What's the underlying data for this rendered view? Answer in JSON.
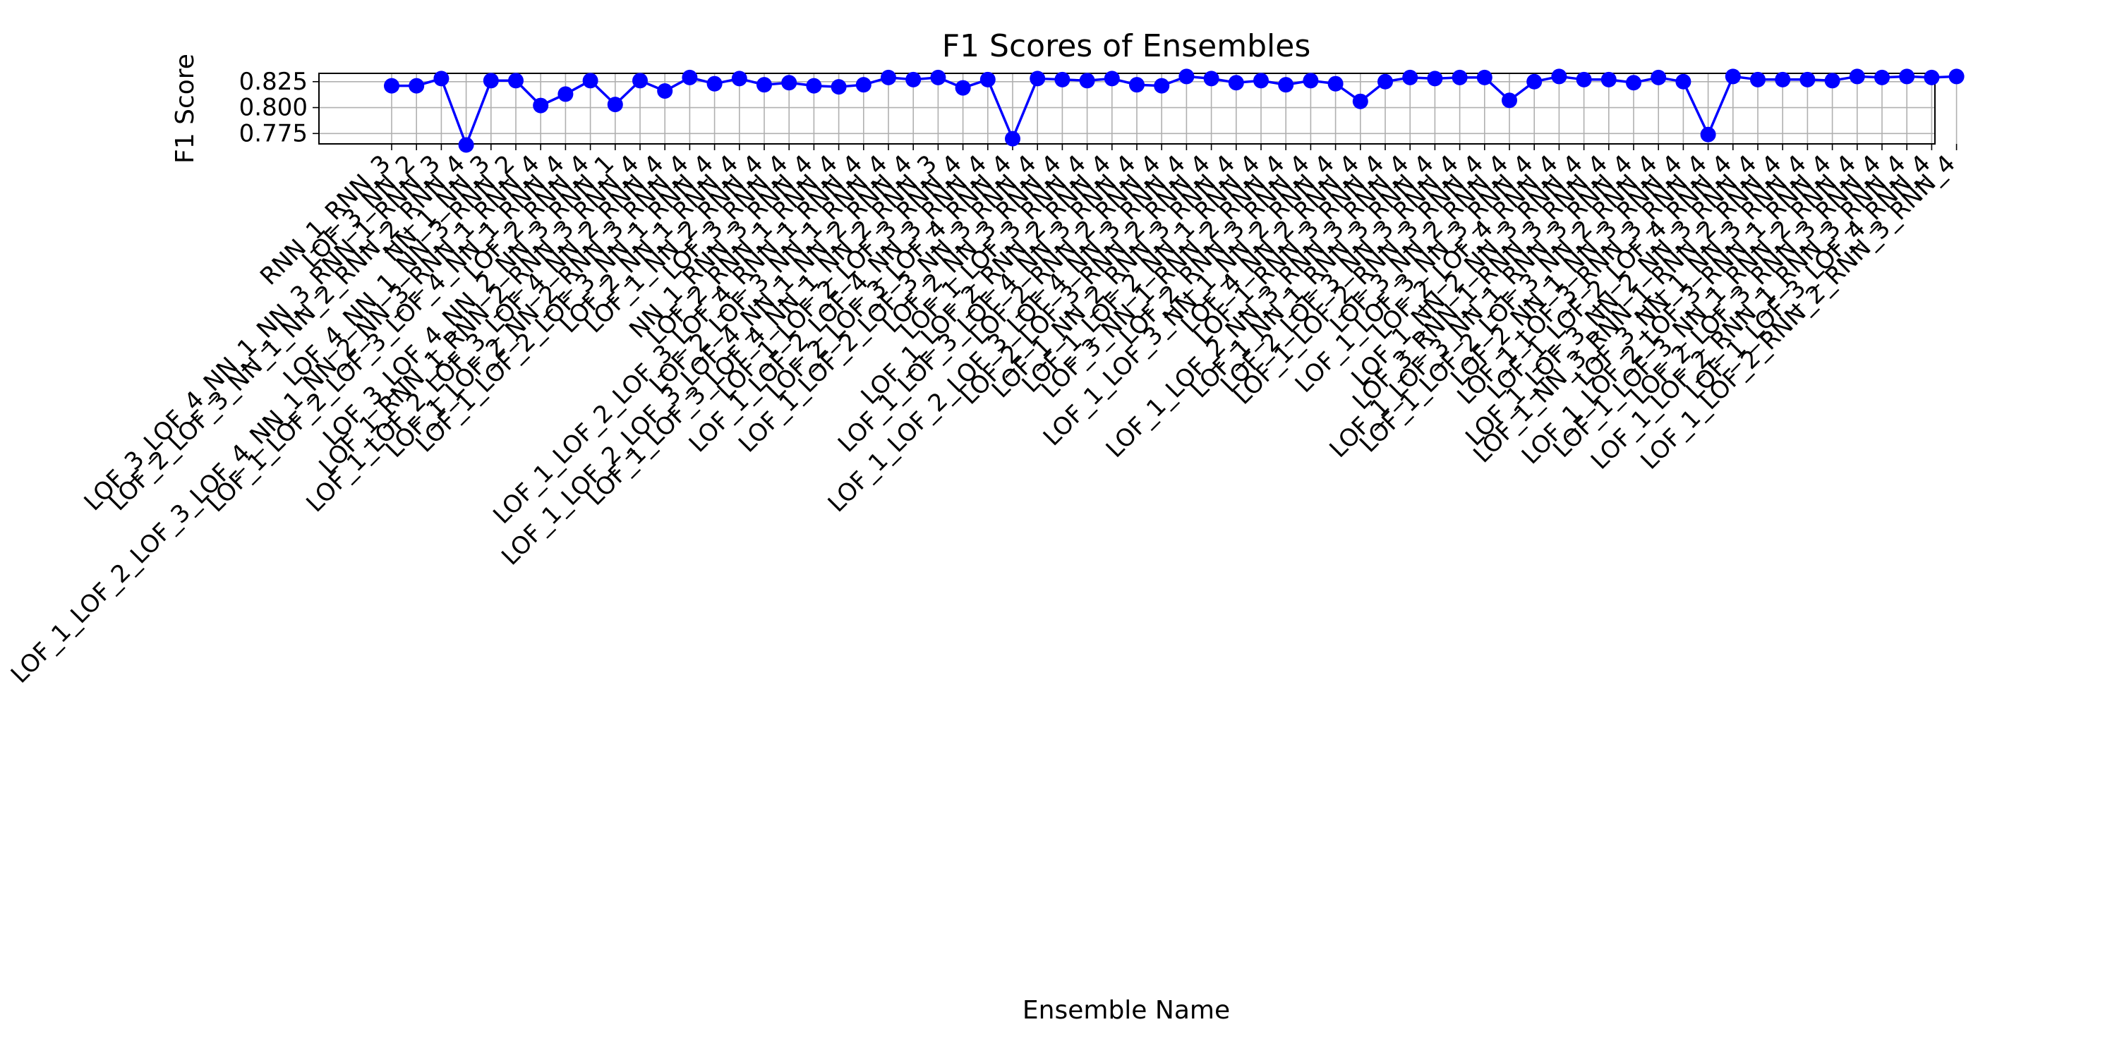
{
  "chart_data": {
    "type": "line",
    "title": "F1 Scores of Ensembles",
    "xlabel": "Ensemble Name",
    "ylabel": "F1 Score",
    "yticks": [
      "0.775",
      "0.800",
      "0.825"
    ],
    "ylim": [
      0.765,
      0.833
    ],
    "grid": true,
    "color": "#0000ff",
    "categories": [
      "RNN_1_RNN_3",
      "LOF_3_NN_2",
      "LOF_3_LOF_4_NN_1_NN_3_RNN_1_RNN_3",
      "LOF_2_LOF_3_NN_1_NN_2_RNN_2_RNN_4",
      "NN_1_NN_3",
      "LOF_4_NN_1_NN_3_RNN_2",
      "LOF_1_LOF_2_LOF_3_LOF_4_NN_1_NN_2_NN_3_RNN_1_RNN_4",
      "LOF_1_LOF_2_LOF_3_LOF_4_NN_1_RNN_4",
      "LOF_2_RNN_4",
      "LOF_3_LOF_4_NN_2_NN_3_RNN_1",
      "LOF_1_RNN_1_RNN_2_RNN_3_RNN_4",
      "LOF_1_LOF_2_LOF_3_LOF_4_NN_2_RNN_4",
      "LOF_1_LOF_2_NN_2_RNN_3_RNN_4",
      "LOF_1_LOF_2_LOF_3_NN_1_RNN_4",
      "LOF_2_NN_1_RNN_4",
      "LOF_1_NN_2_RNN_4",
      "LOF_3_RNN_4",
      "NN_1_RNN_3_RNN_4",
      "LOF_2_RNN_1_RNN_4",
      "LOF_1_LOF_2_LOF_3_LOF_4_RNN_1_RNN_4",
      "LOF_2_LOF_3_NN_1_RNN_4",
      "LOF_1_LOF_2_LOF_3_LOF_4_NN_1_NN_2_RNN_4",
      "LOF_1_LOF_3_LOF_4_NN_1_NN_2_RNN_3",
      "LOF_1_LOF_2_LOF_3_RNN_4",
      "LOF_1_LOF_2_LOF_4_NN_3_RNN_4",
      "LOF_2_LOF_3_LOF_4_RNN_4",
      "LOF_1_LOF_2_LOF_3_NN_3_RNN_4",
      "LOF_2_NN_3_RNN_4",
      "LOF_1_LOF_3_RNN_4",
      "LOF_1_LOF_2_RNN_2_RNN_4",
      "LOF_1_LOF_3_LOF_4_NN_3_RNN_4",
      "LOF_2_RNN_2_RNN_4",
      "LOF_1_LOF_2_LOF_3_LOF_4_NN_3_RNN_4",
      "LOF_2_LOF_3_RNN_2_RNN_4",
      "LOF_1_NN_2_RNN_3_RNN_4",
      "LOF_1_LOF_2_NN_1_RNN_4",
      "LOF_3_NN_1_RNN_2_RNN_4",
      "LOF_2_RNN_3_RNN_4",
      "LOF_1_LOF_3_NN_1_NN_2_RNN_4",
      "LOF_4_NN_2_RNN_4",
      "LOF_1_RNN_3_RNN_4",
      "LOF_1_LOF_2_NN_3_RNN_3_RNN_4",
      "LOF_1_NN_1_RNN_3_RNN_4",
      "LOF_2_LOF_3_NN_3_RNN_4",
      "LOF_1_LOF_2_RNN_3_RNN_4",
      "LOF_3_NN_2_RNN_4",
      "LOF_1_LOF_3_NN_3_RNN_4",
      "LOF_2_LOF_4_RNN_4",
      "LOF_1_NN_2_NN_3_RNN_4",
      "LOF_3_RNN_1_RNN_3_RNN_4",
      "LOF_1_LOF_3_NN_1_RNN_3_RNN_4",
      "LOF_1_LOF_2_LOF_3_NN_2_RNN_4",
      "LOF_2_NN_1_NN_3_RNN_4",
      "LOF_1_LOF_3_RNN_3_RNN_4",
      "LOF_1_LOF_2_LOF_4_RNN_4",
      "LOF_1_LOF_3_NN_2_NN_3_RNN_4",
      "LOF_1_NN_3_RNN_1_RNN_2_RNN_4",
      "LOF_3_NN_1_NN_3_RNN_4",
      "LOF_1_LOF_2_LOF_3_RNN_1_RNN_4",
      "LOF_1_LOF_3_NN_1_RNN_2_RNN_4",
      "LOF_2_LOF_3_RNN_3_RNN_4",
      "LOF_1_LOF_2_RNN_1_RNN_3_RNN_4",
      "LOF_1_LOF_3_LOF_4_RNN_4",
      "LOF_1_LOF_2_RNN_2_RNN_3_RNN_4"
    ],
    "values": [
      0.821,
      0.821,
      0.828,
      0.764,
      0.826,
      0.826,
      0.802,
      0.813,
      0.826,
      0.803,
      0.826,
      0.816,
      0.829,
      0.823,
      0.828,
      0.822,
      0.824,
      0.821,
      0.82,
      0.822,
      0.829,
      0.827,
      0.829,
      0.819,
      0.827,
      0.77,
      0.828,
      0.827,
      0.826,
      0.828,
      0.822,
      0.821,
      0.83,
      0.828,
      0.824,
      0.826,
      0.822,
      0.826,
      0.823,
      0.806,
      0.825,
      0.829,
      0.828,
      0.829,
      0.829,
      0.807,
      0.825,
      0.83,
      0.827,
      0.827,
      0.824,
      0.829,
      0.825,
      0.774,
      0.83,
      0.827,
      0.827,
      0.827,
      0.826,
      0.83,
      0.829,
      0.83,
      0.829,
      0.83
    ]
  }
}
